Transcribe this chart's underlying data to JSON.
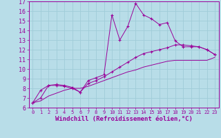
{
  "xlabel": "Windchill (Refroidissement éolien,°C)",
  "background_color": "#b8dde8",
  "line_color": "#990099",
  "grid_color": "#a0ccd8",
  "xlim": [
    -0.5,
    23.5
  ],
  "ylim": [
    6,
    17
  ],
  "xticks": [
    0,
    1,
    2,
    3,
    4,
    5,
    6,
    7,
    8,
    9,
    10,
    11,
    12,
    13,
    14,
    15,
    16,
    17,
    18,
    19,
    20,
    21,
    22,
    23
  ],
  "yticks": [
    6,
    7,
    8,
    9,
    10,
    11,
    12,
    13,
    14,
    15,
    16,
    17
  ],
  "line1_x": [
    0,
    1,
    2,
    3,
    4,
    5,
    6,
    7,
    8,
    9,
    10,
    11,
    12,
    13,
    14,
    15,
    16,
    17,
    18,
    19,
    20,
    21,
    22,
    23
  ],
  "line1_y": [
    6.5,
    7.8,
    8.3,
    8.4,
    8.3,
    8.1,
    7.6,
    8.8,
    9.1,
    9.4,
    15.6,
    13.0,
    14.4,
    16.8,
    15.6,
    15.2,
    14.6,
    14.8,
    12.9,
    12.3,
    12.3,
    12.3,
    12.0,
    11.5
  ],
  "line2_x": [
    0,
    1,
    2,
    3,
    4,
    5,
    6,
    7,
    8,
    9,
    10,
    11,
    12,
    13,
    14,
    15,
    16,
    17,
    18,
    19,
    20,
    21,
    22,
    23
  ],
  "line2_y": [
    6.5,
    7.0,
    8.3,
    8.3,
    8.2,
    8.0,
    7.6,
    8.5,
    8.8,
    9.2,
    9.7,
    10.2,
    10.7,
    11.2,
    11.6,
    11.8,
    12.0,
    12.2,
    12.5,
    12.5,
    12.4,
    12.3,
    12.0,
    11.5
  ],
  "line3_x": [
    0,
    1,
    2,
    3,
    4,
    5,
    6,
    7,
    8,
    9,
    10,
    11,
    12,
    13,
    14,
    15,
    16,
    17,
    18,
    19,
    20,
    21,
    22,
    23
  ],
  "line3_y": [
    6.5,
    6.7,
    7.2,
    7.5,
    7.8,
    8.0,
    8.0,
    8.2,
    8.5,
    8.8,
    9.1,
    9.4,
    9.7,
    9.9,
    10.2,
    10.4,
    10.6,
    10.8,
    10.9,
    10.9,
    10.9,
    10.9,
    10.9,
    11.2
  ],
  "xlabel_fontsize": 6.5,
  "tick_fontsize": 6
}
